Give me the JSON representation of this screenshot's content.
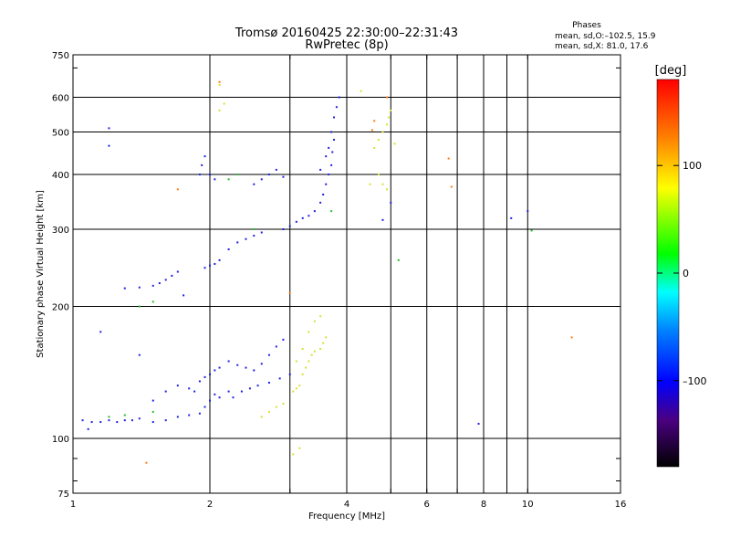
{
  "header": {
    "title_line1": "Tromsø 20160425 22:30:00–22:31:43",
    "title_line2": "RwPretec (8p)",
    "phases_title": "Phases",
    "phases_line1": "mean, sd,O:–102.5, 15.9",
    "phases_line2": "mean, sd,X:  81.0, 17.6"
  },
  "colorbar": {
    "label": "[deg]",
    "ticks": [
      {
        "value": 100,
        "label": "100"
      },
      {
        "value": 0,
        "label": "0"
      },
      {
        "value": -100,
        "label": "–100"
      }
    ],
    "range": [
      -180,
      180
    ]
  },
  "chart_data": {
    "type": "scatter",
    "xlabel": "Frequency [MHz]",
    "ylabel": "Stationary phase Virtual Height [km]",
    "x_scale": "log",
    "y_scale": "log",
    "xlim": [
      1,
      16
    ],
    "ylim": [
      75,
      750
    ],
    "grid": true,
    "x_ticks": [
      {
        "value": 1,
        "label": "1"
      },
      {
        "value": 2,
        "label": "2"
      },
      {
        "value": 4,
        "label": "4"
      },
      {
        "value": 6,
        "label": "6"
      },
      {
        "value": 8,
        "label": "8"
      },
      {
        "value": 10,
        "label": "10"
      },
      {
        "value": 16,
        "label": "16"
      }
    ],
    "x_minor": [
      3,
      5,
      7,
      9
    ],
    "y_ticks": [
      {
        "value": 75,
        "label": "75"
      },
      {
        "value": 100,
        "label": "100"
      },
      {
        "value": 200,
        "label": "200"
      },
      {
        "value": 300,
        "label": "300"
      },
      {
        "value": 400,
        "label": "400"
      },
      {
        "value": 500,
        "label": "500"
      },
      {
        "value": 600,
        "label": "600"
      },
      {
        "value": 750,
        "label": "750"
      }
    ],
    "y_grid": [
      100,
      200,
      300,
      400,
      500,
      600
    ],
    "series": [
      {
        "points": [
          [
            1.05,
            110
          ],
          [
            1.1,
            109
          ],
          [
            1.15,
            109
          ],
          [
            1.2,
            110
          ],
          [
            1.25,
            109
          ],
          [
            1.3,
            110
          ],
          [
            1.35,
            110
          ],
          [
            1.4,
            111
          ],
          [
            1.5,
            109
          ],
          [
            1.6,
            110
          ],
          [
            1.7,
            112
          ],
          [
            1.8,
            113
          ],
          [
            1.9,
            114
          ],
          [
            1.95,
            118
          ],
          [
            2.0,
            122
          ],
          [
            2.05,
            126
          ],
          [
            2.1,
            124
          ],
          [
            2.2,
            128
          ],
          [
            2.25,
            124
          ],
          [
            2.35,
            128
          ],
          [
            2.45,
            130
          ],
          [
            2.55,
            132
          ],
          [
            2.7,
            134
          ],
          [
            2.85,
            137
          ],
          [
            3.0,
            140
          ],
          [
            1.9,
            135
          ],
          [
            1.95,
            138
          ],
          [
            2.0,
            140
          ],
          [
            2.05,
            143
          ],
          [
            2.1,
            145
          ],
          [
            2.2,
            150
          ],
          [
            2.3,
            147
          ],
          [
            2.4,
            145
          ],
          [
            2.5,
            143
          ],
          [
            2.6,
            148
          ],
          [
            2.7,
            155
          ],
          [
            2.8,
            162
          ],
          [
            2.9,
            168
          ],
          [
            1.5,
            122
          ],
          [
            1.6,
            128
          ],
          [
            1.7,
            132
          ],
          [
            1.8,
            130
          ],
          [
            1.85,
            128
          ],
          [
            1.3,
            220
          ],
          [
            1.4,
            221
          ],
          [
            1.5,
            223
          ],
          [
            1.55,
            226
          ],
          [
            1.6,
            230
          ],
          [
            1.65,
            235
          ],
          [
            1.7,
            240
          ],
          [
            1.75,
            212
          ],
          [
            1.95,
            245
          ],
          [
            2.0,
            248
          ],
          [
            2.05,
            250
          ],
          [
            2.1,
            255
          ],
          [
            2.2,
            270
          ],
          [
            2.3,
            280
          ],
          [
            2.4,
            285
          ],
          [
            2.5,
            290
          ],
          [
            2.6,
            295
          ],
          [
            2.9,
            300
          ],
          [
            3.0,
            305
          ],
          [
            3.1,
            312
          ],
          [
            3.2,
            318
          ],
          [
            3.3,
            322
          ],
          [
            3.4,
            330
          ],
          [
            3.5,
            345
          ],
          [
            3.55,
            360
          ],
          [
            3.6,
            380
          ],
          [
            3.65,
            400
          ],
          [
            3.7,
            420
          ],
          [
            3.72,
            450
          ],
          [
            3.75,
            480
          ],
          [
            3.5,
            410
          ],
          [
            3.6,
            440
          ],
          [
            3.65,
            460
          ],
          [
            3.7,
            500
          ],
          [
            3.75,
            540
          ],
          [
            3.8,
            570
          ],
          [
            3.85,
            600
          ],
          [
            1.9,
            400
          ],
          [
            1.92,
            420
          ],
          [
            1.95,
            440
          ],
          [
            2.0,
            400
          ],
          [
            2.05,
            390
          ],
          [
            2.5,
            380
          ],
          [
            2.6,
            390
          ],
          [
            2.7,
            400
          ],
          [
            2.8,
            410
          ],
          [
            2.9,
            395
          ],
          [
            1.08,
            105
          ],
          [
            1.15,
            175
          ],
          [
            1.2,
            465
          ],
          [
            1.2,
            510
          ],
          [
            1.4,
            155
          ],
          [
            5.0,
            345
          ],
          [
            4.8,
            315
          ],
          [
            7.8,
            108
          ],
          [
            9.2,
            318
          ],
          [
            10.0,
            330
          ]
        ]
      },
      {
        "points": [
          [
            3.05,
            128
          ],
          [
            3.1,
            130
          ],
          [
            3.15,
            132
          ],
          [
            3.2,
            140
          ],
          [
            3.25,
            145
          ],
          [
            3.3,
            150
          ],
          [
            3.35,
            155
          ],
          [
            3.4,
            158
          ],
          [
            3.5,
            160
          ],
          [
            3.55,
            165
          ],
          [
            3.6,
            170
          ],
          [
            3.1,
            150
          ],
          [
            3.2,
            160
          ],
          [
            3.3,
            175
          ],
          [
            3.4,
            185
          ],
          [
            3.5,
            190
          ],
          [
            2.6,
            112
          ],
          [
            2.7,
            115
          ],
          [
            2.8,
            118
          ],
          [
            2.9,
            120
          ],
          [
            3.05,
            92
          ],
          [
            3.15,
            95
          ],
          [
            4.6,
            460
          ],
          [
            4.7,
            480
          ],
          [
            4.8,
            500
          ],
          [
            4.9,
            520
          ],
          [
            4.95,
            540
          ],
          [
            5.0,
            560
          ],
          [
            4.8,
            380
          ],
          [
            4.9,
            370
          ],
          [
            4.7,
            400
          ],
          [
            5.1,
            470
          ],
          [
            4.5,
            380
          ],
          [
            2.1,
            560
          ],
          [
            2.15,
            580
          ],
          [
            2.1,
            640
          ],
          [
            4.3,
            620
          ]
        ]
      },
      {
        "points": [
          [
            1.2,
            112
          ],
          [
            1.3,
            113
          ],
          [
            1.5,
            115
          ],
          [
            2.2,
            390
          ],
          [
            2.3,
            400
          ],
          [
            5.2,
            255
          ],
          [
            2.5,
            300
          ],
          [
            3.7,
            330
          ],
          [
            10.2,
            298
          ],
          [
            1.4,
            200
          ],
          [
            1.5,
            205
          ]
        ]
      },
      {
        "points": [
          [
            1.45,
            88
          ],
          [
            1.7,
            370
          ],
          [
            4.55,
            505
          ],
          [
            4.6,
            530
          ],
          [
            6.7,
            435
          ],
          [
            6.8,
            375
          ],
          [
            12.5,
            170
          ],
          [
            2.1,
            650
          ],
          [
            4.9,
            600
          ],
          [
            3.0,
            215
          ]
        ]
      }
    ]
  }
}
